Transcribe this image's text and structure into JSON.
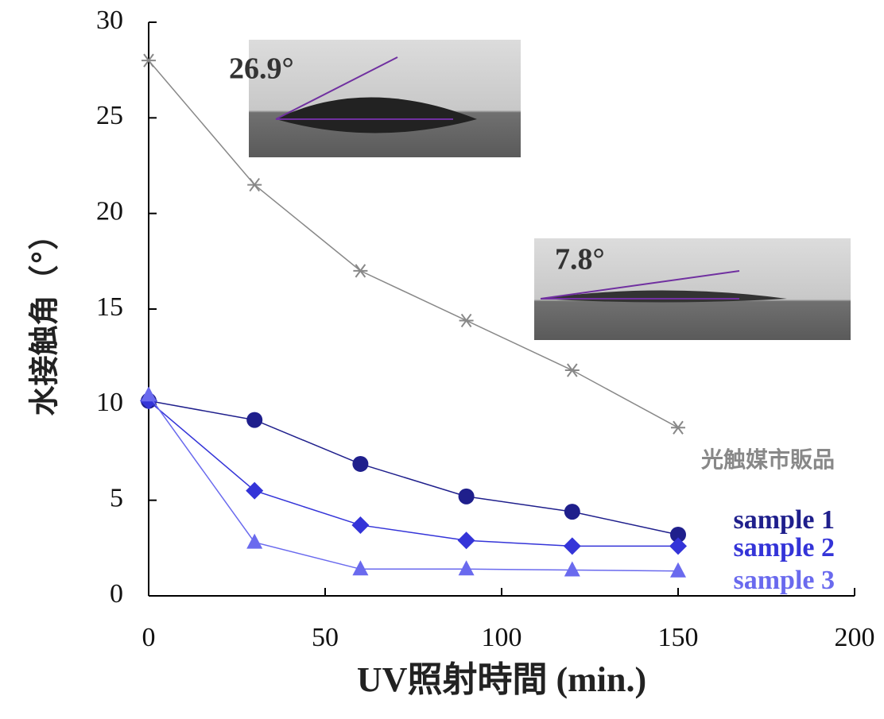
{
  "chart_data": {
    "type": "line",
    "x_label": "UV照射時間 (min.)",
    "y_label": "水接触角（°）",
    "xlim": [
      0,
      200
    ],
    "xticks": [
      0,
      50,
      100,
      150,
      200
    ],
    "ylim": [
      0,
      30
    ],
    "yticks": [
      0,
      5,
      10,
      15,
      20,
      25,
      30
    ],
    "x": [
      0,
      30,
      60,
      90,
      120,
      150
    ],
    "series": [
      {
        "name": "光触媒市販品",
        "color": "#888888",
        "marker": "star",
        "values": [
          28,
          21.5,
          17,
          14.4,
          11.8,
          8.8
        ]
      },
      {
        "name": "sample 1",
        "color": "#1f1f8c",
        "marker": "circle",
        "values": [
          10.2,
          9.2,
          6.9,
          5.2,
          4.4,
          3.2
        ]
      },
      {
        "name": "sample 2",
        "color": "#3434d8",
        "marker": "diamond",
        "values": [
          10.2,
          5.5,
          3.7,
          2.9,
          2.6,
          2.6
        ]
      },
      {
        "name": "sample 3",
        "color": "#6a6aee",
        "marker": "triangle",
        "values": [
          10.5,
          2.8,
          1.4,
          1.4,
          1.35,
          1.3
        ]
      }
    ],
    "annotations": [
      "26.9°",
      "7.8°"
    ]
  }
}
